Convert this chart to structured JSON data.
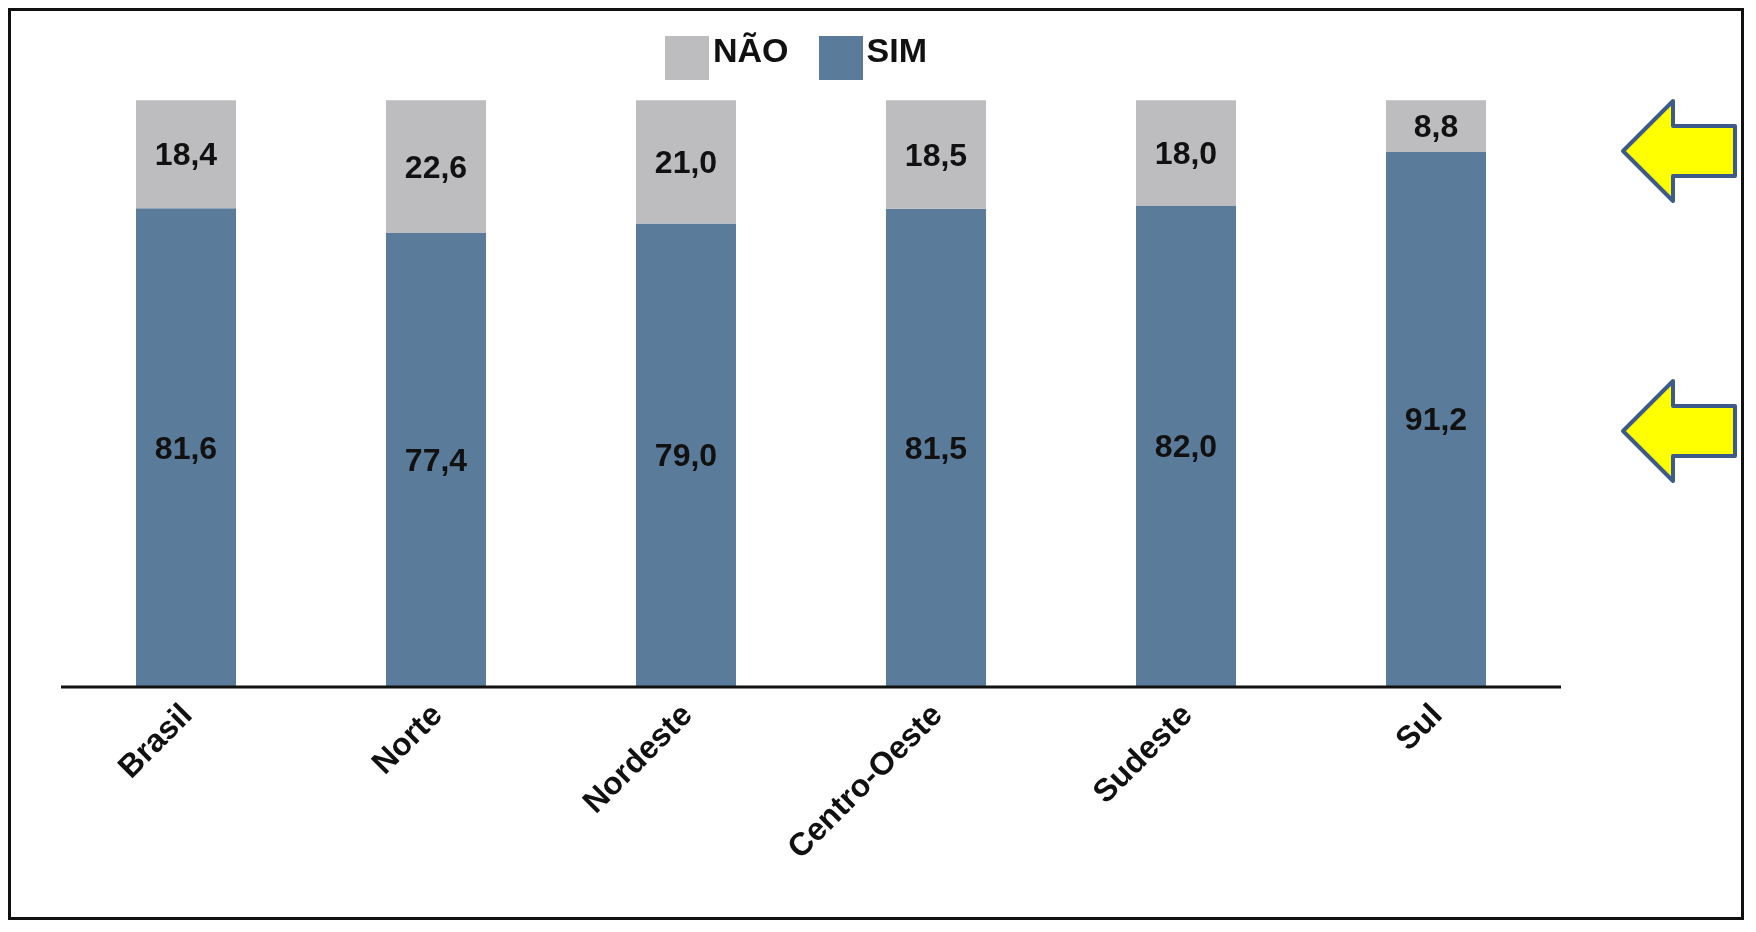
{
  "chart_data": {
    "type": "bar",
    "stacked": true,
    "categories": [
      "Brasil",
      "Norte",
      "Nordeste",
      "Centro-Oeste",
      "Sudeste",
      "Sul"
    ],
    "series": [
      {
        "name": "SIM",
        "color": "#5b7b9b",
        "values": [
          81.6,
          77.4,
          79.0,
          81.5,
          82.0,
          91.2
        ],
        "value_labels": [
          "81,6",
          "77,4",
          "79,0",
          "81,5",
          "82,0",
          "91,2"
        ]
      },
      {
        "name": "NÃO",
        "color": "#bdbdbf",
        "values": [
          18.4,
          22.6,
          21.0,
          18.5,
          18.0,
          8.8
        ],
        "value_labels": [
          "18,4",
          "22,6",
          "21,0",
          "18,5",
          "18,0",
          "8,8"
        ]
      }
    ],
    "legend": "top",
    "grid": false
  }
}
